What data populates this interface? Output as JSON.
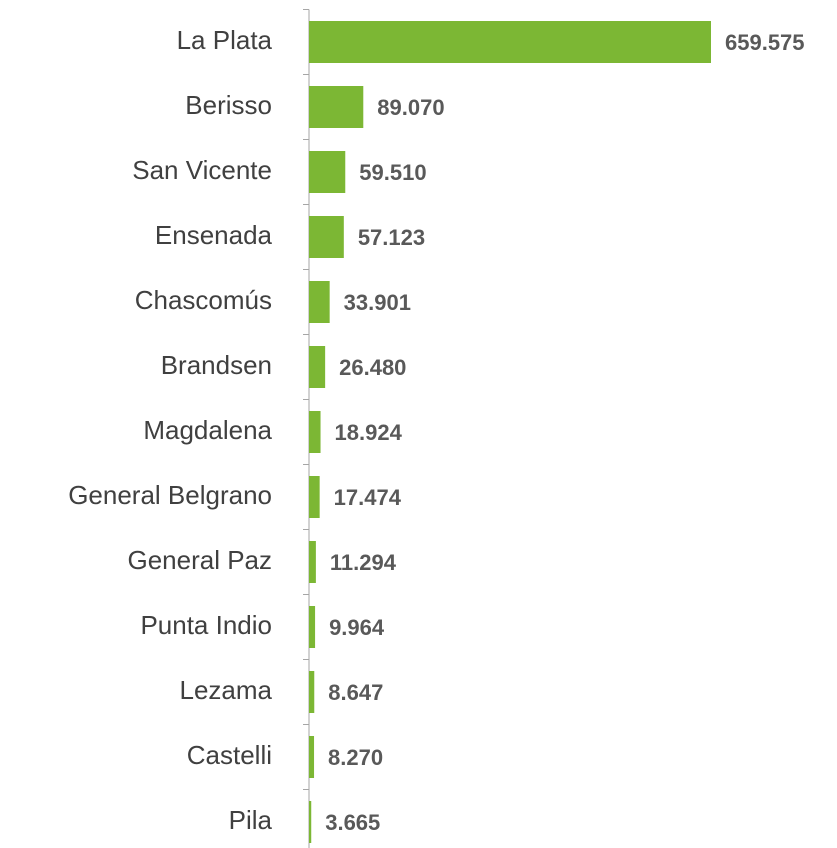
{
  "chart_data": {
    "type": "hbar",
    "categories": [
      "La Plata",
      "Berisso",
      "San Vicente",
      "Ensenada",
      "Chascomús",
      "Brandsen",
      "Magdalena",
      "General Belgrano",
      "General Paz",
      "Punta Indio",
      "Lezama",
      "Castelli",
      "Pila"
    ],
    "values": [
      659575,
      89070,
      59510,
      57123,
      33901,
      26480,
      18924,
      17474,
      11294,
      9964,
      8647,
      8270,
      3665
    ],
    "value_labels": [
      "659.575",
      "89.070",
      "59.510",
      "57.123",
      "33.901",
      "26.480",
      "18.924",
      "17.474",
      "11.294",
      "9.964",
      "8.647",
      "8.270",
      "3.665"
    ],
    "color": "#7cb734"
  }
}
